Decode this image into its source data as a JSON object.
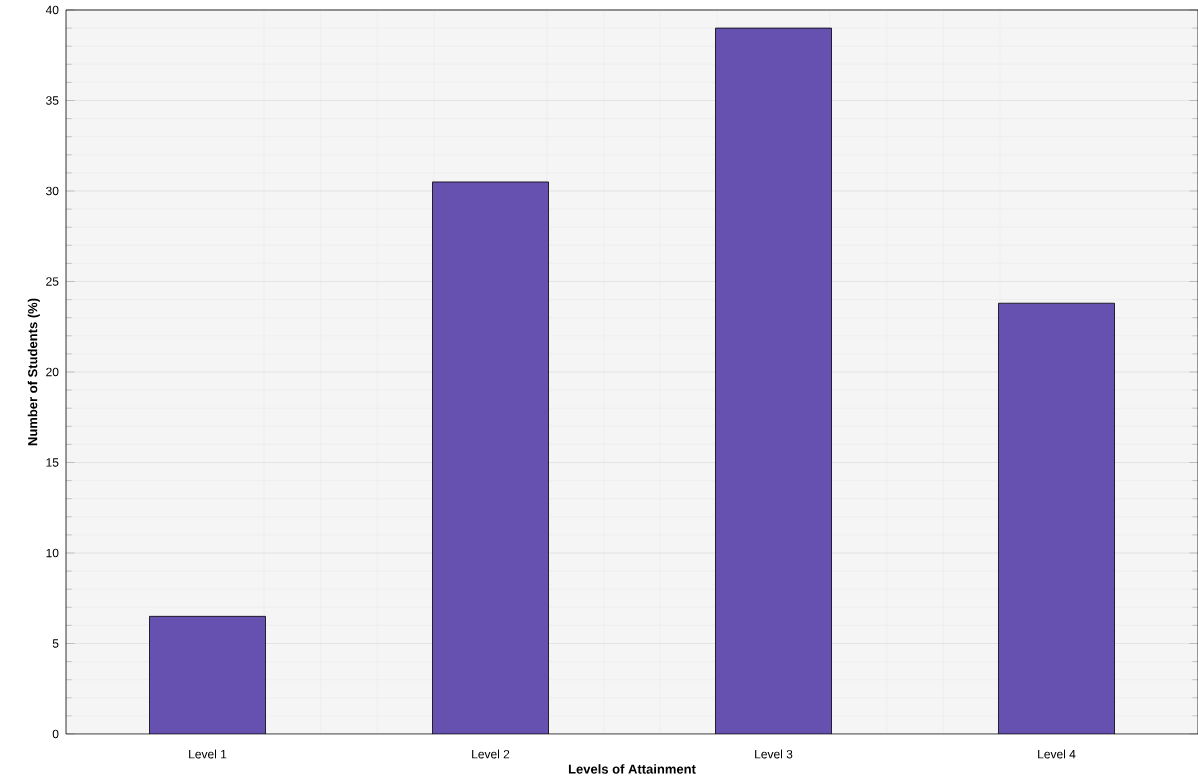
{
  "chart_data": {
    "type": "bar",
    "xlabel": "Levels of Attainment",
    "ylabel": "Number of Students (%)",
    "categories": [
      "Level 1",
      "Level 2",
      "Level 3",
      "Level 4"
    ],
    "values": [
      6.5,
      30.5,
      39.0,
      23.8
    ],
    "color": "#6650b0",
    "ylim": [
      0,
      40
    ],
    "yticks": [
      0,
      5,
      10,
      15,
      20,
      25,
      30,
      35,
      40
    ],
    "grid": true
  }
}
